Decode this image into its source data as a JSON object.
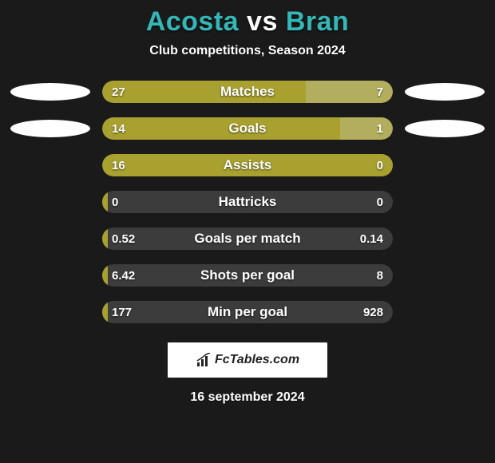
{
  "background_color": "#1a1a1a",
  "accent_color": "#35b7b7",
  "bar_track_color": "#3c3c3c",
  "bar_left_color": "#a8a02f",
  "bar_right_color": "#b3ae5d",
  "title": {
    "player1": "Acosta",
    "vs": "vs",
    "player2": "Bran",
    "color": "#35b7b7"
  },
  "subtitle": "Club competitions, Season 2024",
  "rows": [
    {
      "label": "Matches",
      "left": "27",
      "right": "7",
      "left_pct": 70,
      "right_pct": 30,
      "show_badges": true
    },
    {
      "label": "Goals",
      "left": "14",
      "right": "1",
      "left_pct": 82,
      "right_pct": 18,
      "show_badges": true
    },
    {
      "label": "Assists",
      "left": "16",
      "right": "0",
      "left_pct": 100,
      "right_pct": 0,
      "show_badges": false
    },
    {
      "label": "Hattricks",
      "left": "0",
      "right": "0",
      "left_pct": 2,
      "right_pct": 0,
      "show_badges": false
    },
    {
      "label": "Goals per match",
      "left": "0.52",
      "right": "0.14",
      "left_pct": 2,
      "right_pct": 0,
      "show_badges": false
    },
    {
      "label": "Shots per goal",
      "left": "6.42",
      "right": "8",
      "left_pct": 2,
      "right_pct": 0,
      "show_badges": false
    },
    {
      "label": "Min per goal",
      "left": "177",
      "right": "928",
      "left_pct": 2,
      "right_pct": 0,
      "show_badges": false
    }
  ],
  "logo": "FcTables.com",
  "date": "16 september 2024"
}
